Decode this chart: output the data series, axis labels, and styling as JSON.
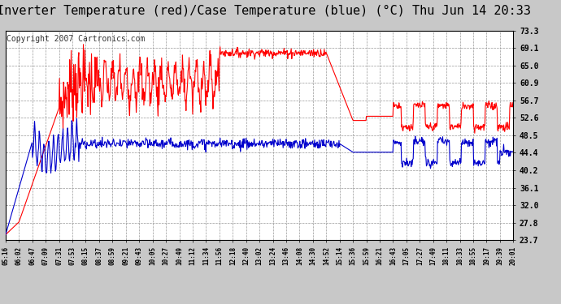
{
  "title": "Inverter Temperature (red)/Case Temperature (blue) (°C) Thu Jun 14 20:33",
  "copyright": "Copyright 2007 Cartronics.com",
  "yticks": [
    23.7,
    27.8,
    32.0,
    36.1,
    40.2,
    44.4,
    48.5,
    52.6,
    56.7,
    60.9,
    65.0,
    69.1,
    73.3
  ],
  "ymin": 23.7,
  "ymax": 73.3,
  "xtick_labels": [
    "05:16",
    "06:02",
    "06:47",
    "07:09",
    "07:31",
    "07:53",
    "08:15",
    "08:37",
    "08:59",
    "09:21",
    "09:43",
    "10:05",
    "10:27",
    "10:49",
    "11:12",
    "11:34",
    "11:56",
    "12:18",
    "12:40",
    "13:02",
    "13:24",
    "13:46",
    "14:08",
    "14:30",
    "14:52",
    "15:14",
    "15:36",
    "15:59",
    "16:21",
    "16:43",
    "17:05",
    "17:27",
    "17:49",
    "18:11",
    "18:33",
    "18:55",
    "19:17",
    "19:39",
    "20:01"
  ],
  "bg_color": "#c8c8c8",
  "plot_bg_color": "#ffffff",
  "grid_color": "#999999",
  "red_color": "#ff0000",
  "blue_color": "#0000cc",
  "title_fontsize": 11,
  "copyright_fontsize": 7
}
